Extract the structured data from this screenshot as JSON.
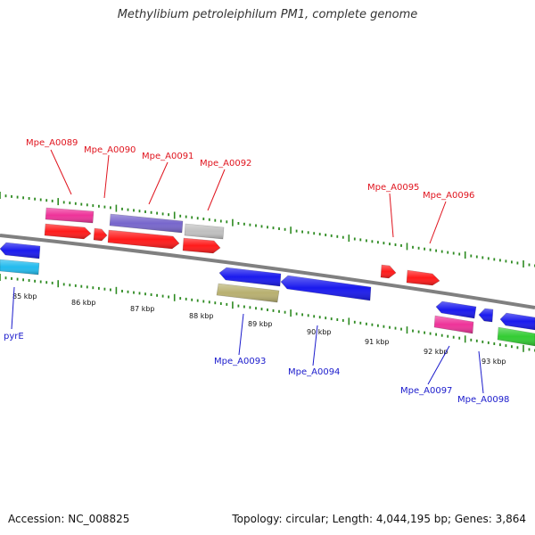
{
  "header": {
    "title": "Methylibium petroleiphilum PM1, complete genome"
  },
  "footer": {
    "accession": "Accession: NC_008825",
    "topology": "Topology: circular; Length: 4,044,195 bp; Genes: 3,864"
  },
  "map": {
    "backbone_color": "#808080",
    "tick_color": "#2e8b22",
    "forward_label_color": "#e0141e",
    "reverse_label_color": "#1a1acc",
    "ruler_labels": [
      "85 kbp",
      "86 kbp",
      "87 kbp",
      "88 kbp",
      "89 kbp",
      "90 kbp",
      "91 kbp",
      "92 kbp",
      "93 kbp"
    ],
    "forward_labels": [
      "Mpe_A0089",
      "Mpe_A0090",
      "Mpe_A0091",
      "Mpe_A0092",
      "Mpe_A0095",
      "Mpe_A0096"
    ],
    "reverse_labels": [
      "pyrE",
      "Mpe_A0093",
      "Mpe_A0094",
      "Mpe_A0097",
      "Mpe_A0098"
    ],
    "feature_colors": {
      "gene": "#ff1a1a",
      "gene_rev": "#1a1aee",
      "cds_pink": "#ee3399",
      "cds_purple": "#7766cc",
      "cds_gray": "#c0c0c0",
      "cds_khaki": "#b8b070",
      "cds_cyan": "#22bbee",
      "cds_green": "#33cc33"
    }
  }
}
